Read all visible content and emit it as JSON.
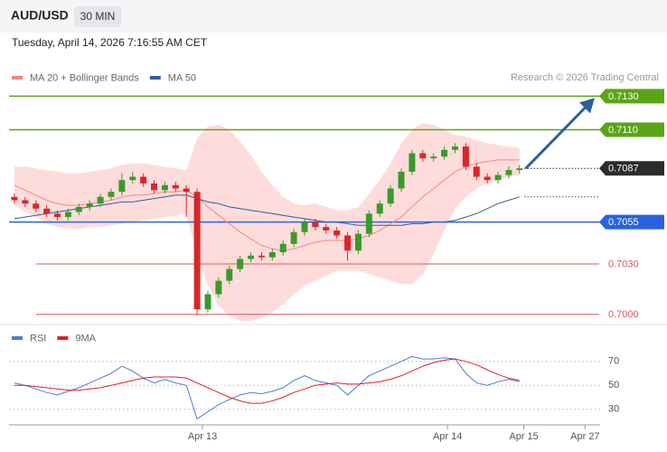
{
  "header": {
    "symbol": "AUD/USD",
    "timeframe": "30 MIN",
    "datetime": "Tuesday, April 14, 2026 7:16:55 AM CET",
    "credit": "Research © 2026 Trading Central"
  },
  "chart_data": [
    {
      "type": "candlestick",
      "candles": {
        "open": [
          0.707,
          0.7068,
          0.7066,
          0.7063,
          0.706,
          0.7058,
          0.7061,
          0.7064,
          0.7066,
          0.707,
          0.7073,
          0.708,
          0.7082,
          0.7078,
          0.7074,
          0.7077,
          0.7075,
          0.7073,
          0.7003,
          0.7012,
          0.702,
          0.7027,
          0.7033,
          0.7035,
          0.7034,
          0.7037,
          0.7042,
          0.7049,
          0.7055,
          0.7052,
          0.705,
          0.7047,
          0.7038,
          0.7048,
          0.706,
          0.7066,
          0.7075,
          0.7085,
          0.7096,
          0.7093,
          0.7094,
          0.7098,
          0.71,
          0.7088,
          0.7082,
          0.708,
          0.7083,
          0.7086
        ],
        "high": [
          0.7072,
          0.707,
          0.7068,
          0.7065,
          0.7062,
          0.7063,
          0.7066,
          0.7068,
          0.7072,
          0.7075,
          0.7084,
          0.7085,
          0.7084,
          0.708,
          0.7079,
          0.7079,
          0.7077,
          0.7075,
          0.7014,
          0.7022,
          0.7029,
          0.7035,
          0.7037,
          0.7037,
          0.7039,
          0.7044,
          0.7051,
          0.7057,
          0.7057,
          0.7054,
          0.7052,
          0.7049,
          0.705,
          0.7062,
          0.7068,
          0.7077,
          0.7087,
          0.7098,
          0.7098,
          0.7096,
          0.71,
          0.7102,
          0.7102,
          0.709,
          0.7084,
          0.7085,
          0.7088,
          0.7089
        ],
        "low": [
          0.7066,
          0.7064,
          0.7061,
          0.7058,
          0.7056,
          0.7056,
          0.7059,
          0.7062,
          0.7064,
          0.7068,
          0.7071,
          0.7078,
          0.7076,
          0.7072,
          0.7072,
          0.7073,
          0.7058,
          0.7,
          0.7001,
          0.701,
          0.7018,
          0.7025,
          0.7031,
          0.7032,
          0.7032,
          0.7035,
          0.704,
          0.7047,
          0.705,
          0.7048,
          0.7045,
          0.7032,
          0.7036,
          0.7046,
          0.7058,
          0.7064,
          0.7073,
          0.7083,
          0.7091,
          0.7091,
          0.7092,
          0.7096,
          0.7086,
          0.708,
          0.7078,
          0.7078,
          0.7081,
          0.7084
        ],
        "close": [
          0.7068,
          0.7066,
          0.7063,
          0.706,
          0.7058,
          0.7061,
          0.7064,
          0.7066,
          0.707,
          0.7073,
          0.708,
          0.7082,
          0.7078,
          0.7074,
          0.7077,
          0.7075,
          0.7073,
          0.7003,
          0.7012,
          0.702,
          0.7027,
          0.7033,
          0.7035,
          0.7034,
          0.7037,
          0.7042,
          0.7049,
          0.7055,
          0.7052,
          0.705,
          0.7047,
          0.7038,
          0.7048,
          0.706,
          0.7066,
          0.7075,
          0.7085,
          0.7096,
          0.7093,
          0.7094,
          0.7098,
          0.71,
          0.7088,
          0.7082,
          0.708,
          0.7083,
          0.7086,
          0.7087
        ],
        "up_color": "#3a9a2a",
        "down_color": "#d9262a"
      },
      "series": [
        {
          "name": "MA 20 + Bollinger Bands",
          "color": "#f4877f",
          "values": [
            0.7077,
            0.7074,
            0.7071,
            0.7068,
            0.7066,
            0.7065,
            0.7065,
            0.7066,
            0.7067,
            0.7068,
            0.707,
            0.7071,
            0.7071,
            0.7072,
            0.7073,
            0.7073,
            0.7074,
            0.707,
            0.7064,
            0.7059,
            0.7054,
            0.7049,
            0.7045,
            0.7041,
            0.7039,
            0.7038,
            0.7039,
            0.7041,
            0.7043,
            0.7044,
            0.7044,
            0.7044,
            0.7045,
            0.7047,
            0.705,
            0.7054,
            0.7058,
            0.7064,
            0.707,
            0.7075,
            0.708,
            0.7085,
            0.7088,
            0.709,
            0.7091,
            0.7092,
            0.7092,
            0.7092
          ]
        },
        {
          "name": "MA 50",
          "color": "#2d5fa0",
          "values": [
            0.7057,
            0.7058,
            0.7059,
            0.706,
            0.7061,
            0.7062,
            0.7063,
            0.7064,
            0.7065,
            0.7066,
            0.7067,
            0.7067,
            0.7068,
            0.7069,
            0.707,
            0.7071,
            0.7071,
            0.7069,
            0.7067,
            0.7066,
            0.7064,
            0.7063,
            0.7062,
            0.7061,
            0.706,
            0.7059,
            0.7058,
            0.7057,
            0.7056,
            0.7055,
            0.7055,
            0.7054,
            0.7053,
            0.7053,
            0.7053,
            0.7053,
            0.7053,
            0.7054,
            0.7054,
            0.7055,
            0.7055,
            0.7056,
            0.7058,
            0.706,
            0.7063,
            0.7066,
            0.7068,
            0.707
          ]
        }
      ],
      "bands": {
        "color": "#ffdcdc",
        "upper": [
          0.7088,
          0.7088,
          0.7087,
          0.7086,
          0.7085,
          0.7084,
          0.7084,
          0.7085,
          0.7086,
          0.7087,
          0.7089,
          0.709,
          0.709,
          0.7089,
          0.7088,
          0.7087,
          0.7086,
          0.7105,
          0.7112,
          0.7113,
          0.711,
          0.7103,
          0.7095,
          0.7085,
          0.7077,
          0.707,
          0.7066,
          0.7065,
          0.7066,
          0.7064,
          0.7062,
          0.7062,
          0.7064,
          0.7072,
          0.708,
          0.709,
          0.7102,
          0.711,
          0.7114,
          0.7113,
          0.711,
          0.7107,
          0.7106,
          0.7104,
          0.7102,
          0.7101,
          0.71,
          0.7099
        ],
        "lower": [
          0.7065,
          0.7061,
          0.7058,
          0.7054,
          0.7052,
          0.7051,
          0.7051,
          0.7052,
          0.7052,
          0.7053,
          0.7054,
          0.7055,
          0.7056,
          0.7057,
          0.7058,
          0.7059,
          0.706,
          0.7035,
          0.7017,
          0.7005,
          0.6999,
          0.6996,
          0.6996,
          0.6998,
          0.7001,
          0.7006,
          0.7012,
          0.7017,
          0.702,
          0.7023,
          0.7026,
          0.7026,
          0.7026,
          0.7024,
          0.7022,
          0.702,
          0.7018,
          0.7018,
          0.7024,
          0.7036,
          0.705,
          0.7063,
          0.707,
          0.7075,
          0.7078,
          0.708,
          0.7082,
          0.7083
        ]
      },
      "levels": [
        {
          "value": 0.713,
          "label": "0.7130",
          "color": "#5aa516",
          "style": "box"
        },
        {
          "value": 0.711,
          "label": "0.7110",
          "color": "#5aa516",
          "style": "box"
        },
        {
          "value": 0.7087,
          "label": "0.7087",
          "color": "#2b2b2b",
          "style": "current"
        },
        {
          "value": 0.7055,
          "label": "0.7055",
          "color": "#2962e0",
          "style": "box"
        },
        {
          "value": 0.703,
          "label": "0.7030",
          "color": "#e05555",
          "style": "text"
        },
        {
          "value": 0.7,
          "label": "0.7000",
          "color": "#e05555",
          "style": "text"
        }
      ],
      "xlim": [
        -0.5,
        54.5
      ],
      "ylim": [
        0.6995,
        0.7155
      ],
      "xticks": [
        {
          "value": 17.5,
          "label": "Apr 13"
        },
        {
          "value": 40.3,
          "label": "Apr 14"
        },
        {
          "value": 47.4,
          "label": "Apr 15"
        },
        {
          "value": 53.1,
          "label": "Apr 27"
        }
      ]
    },
    {
      "type": "line",
      "series": [
        {
          "name": "RSI",
          "color": "#4a7bd8",
          "values": [
            52,
            50,
            47,
            44,
            42,
            45,
            48,
            52,
            56,
            60,
            66,
            62,
            56,
            52,
            55,
            52,
            50,
            22,
            28,
            34,
            38,
            42,
            44,
            43,
            45,
            48,
            54,
            58,
            54,
            52,
            50,
            42,
            50,
            58,
            62,
            66,
            70,
            74,
            72,
            72,
            73,
            72,
            60,
            52,
            50,
            53,
            55,
            53
          ]
        },
        {
          "name": "9MA",
          "color": "#e02020",
          "values": [
            50,
            50,
            49,
            48,
            47,
            46,
            46,
            47,
            48,
            50,
            52,
            54,
            56,
            57,
            57,
            57,
            56,
            52,
            48,
            44,
            40,
            37,
            35,
            35,
            37,
            40,
            44,
            47,
            50,
            51,
            52,
            51,
            51,
            52,
            53,
            55,
            58,
            62,
            66,
            69,
            71,
            72,
            70,
            67,
            63,
            59,
            56,
            54
          ]
        }
      ],
      "ylim": [
        20,
        100
      ],
      "yticks": [
        30,
        50,
        70
      ]
    }
  ]
}
